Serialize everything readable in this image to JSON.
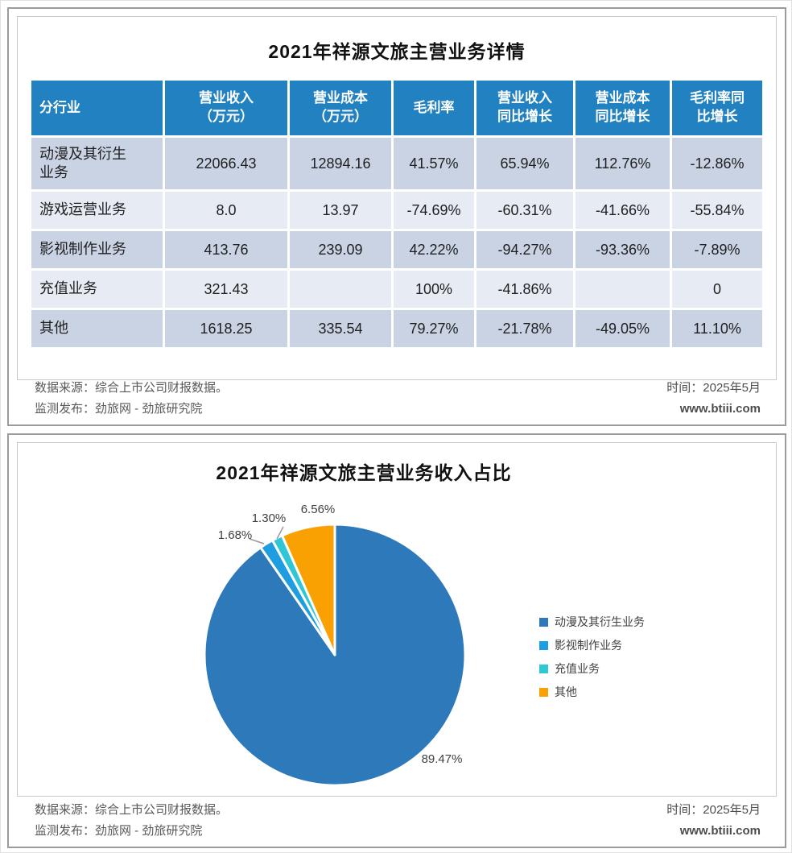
{
  "panel1": {
    "title": "2021年祥源文旅主营业务详情",
    "table": {
      "headers": [
        "分行业",
        "营业收入\n（万元）",
        "营业成本\n（万元）",
        "毛利率",
        "营业收入\n同比增长",
        "营业成本\n同比增长",
        "毛利率同\n比增长"
      ],
      "rows": [
        [
          "动漫及其衍生\n业务",
          "22066.43",
          "12894.16",
          "41.57%",
          "65.94%",
          "112.76%",
          "-12.86%"
        ],
        [
          "游戏运营业务",
          "8.0",
          "13.97",
          "-74.69%",
          "-60.31%",
          "-41.66%",
          "-55.84%"
        ],
        [
          "影视制作业务",
          "413.76",
          "239.09",
          "42.22%",
          "-94.27%",
          "-93.36%",
          "-7.89%"
        ],
        [
          "充值业务",
          "321.43",
          "",
          "100%",
          "-41.86%",
          "",
          "0"
        ],
        [
          "其他",
          "1618.25",
          "335.54",
          "79.27%",
          "-21.78%",
          "-49.05%",
          "11.10%"
        ]
      ]
    }
  },
  "panel2": {
    "title": "2021年祥源文旅主营业务收入占比"
  },
  "footer": {
    "source_label": "数据来源：综合上市公司财报数据。",
    "publisher_label": "监测发布：劲旅网 - 劲旅研究院",
    "time_label": "时间：2025年5月",
    "website": "www.btiii.com"
  },
  "chart_data": {
    "type": "pie",
    "title": "2021年祥源文旅主营业务收入占比",
    "categories": [
      "动漫及其衍生业务",
      "影视制作业务",
      "充值业务",
      "其他"
    ],
    "values": [
      89.47,
      1.68,
      1.3,
      6.56
    ],
    "labels": [
      "89.47%",
      "1.68%",
      "1.30%",
      "6.56%"
    ],
    "colors": [
      "#2e79ba",
      "#1e9de0",
      "#31c6d4",
      "#f9a103"
    ],
    "legend_position": "right",
    "start_angle_deg": 0,
    "direction": "clockwise"
  },
  "colors": {
    "table_header_blue": "#2181c1",
    "table_row_dark": "#c9d3e4",
    "table_row_light": "#e7ebf4",
    "panel_border": "#9b9b9b",
    "inner_border": "#c8c8c8",
    "footer_text": "#595959"
  }
}
